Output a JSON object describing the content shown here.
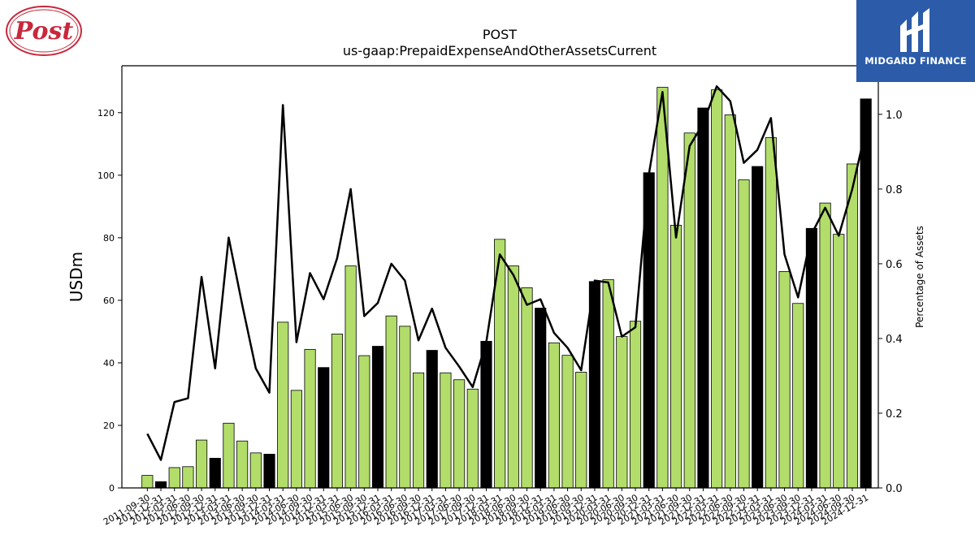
{
  "header": {
    "title": "POST",
    "subtitle": "us-gaap:PrepaidExpenseAndOtherAssetsCurrent"
  },
  "logos": {
    "left": {
      "icon": "post-logo-icon",
      "text": "Post"
    },
    "right": {
      "icon": "midgard-logo-icon",
      "text": "MIDGARD FINANCE"
    }
  },
  "colors": {
    "bar_green": "#b2dd6a",
    "bar_black": "#000000",
    "line": "#000000",
    "midgard_bg": "#2b5ba9",
    "post_red": "#c8283c"
  },
  "chart_data": {
    "type": "bar",
    "xlabel": "",
    "ylabel": "USDm",
    "ylabel_right": "Percentage of Assets",
    "ylim": [
      0,
      135
    ],
    "ylim_right": [
      0,
      1.13
    ],
    "yticks": [
      0,
      20,
      40,
      60,
      80,
      100,
      120
    ],
    "yticks_right": [
      0.0,
      0.2,
      0.4,
      0.6,
      0.8,
      1.0
    ],
    "grid": false,
    "categories": [
      "2011-09-30",
      "2011-12-31",
      "2012-03-31",
      "2012-06-30",
      "2012-09-30",
      "2012-12-31",
      "2013-03-31",
      "2013-06-30",
      "2013-09-30",
      "2013-12-31",
      "2014-03-31",
      "2014-06-30",
      "2014-09-30",
      "2014-12-31",
      "2015-03-31",
      "2015-06-30",
      "2015-09-30",
      "2015-12-31",
      "2016-03-31",
      "2016-06-30",
      "2016-09-30",
      "2016-12-31",
      "2017-03-31",
      "2017-06-30",
      "2017-09-30",
      "2017-12-31",
      "2018-03-31",
      "2018-06-30",
      "2018-09-30",
      "2018-12-31",
      "2019-03-31",
      "2019-06-30",
      "2019-09-30",
      "2019-12-31",
      "2020-03-31",
      "2020-06-30",
      "2020-09-30",
      "2020-12-31",
      "2021-03-31",
      "2021-06-30",
      "2021-09-30",
      "2021-12-31",
      "2022-03-31",
      "2022-06-30",
      "2022-09-30",
      "2022-12-31",
      "2023-03-31",
      "2023-06-30",
      "2023-09-30",
      "2023-12-31",
      "2024-03-31",
      "2024-06-30",
      "2024-09-30",
      "2024-12-31"
    ],
    "series": [
      {
        "type": "bar",
        "values": [
          4.0,
          2.0,
          6.5,
          6.8,
          15.3,
          9.5,
          20.7,
          15.0,
          11.2,
          10.8,
          53.0,
          31.2,
          44.3,
          38.5,
          49.2,
          71.0,
          42.3,
          45.3,
          55.0,
          51.7,
          36.8,
          44.0,
          36.8,
          34.6,
          31.6,
          46.9,
          79.5,
          71.0,
          64.0,
          57.5,
          46.4,
          42.4,
          37.0,
          66.0,
          66.6,
          48.4,
          53.3,
          100.8,
          128.1,
          84.0,
          113.5,
          121.5,
          127.3,
          119.3,
          98.5,
          102.8,
          112.0,
          69.2,
          59.0,
          83.0,
          91.1,
          81.1,
          103.6,
          124.4
        ],
        "highlight": [
          false,
          true,
          false,
          false,
          false,
          true,
          false,
          false,
          false,
          true,
          false,
          false,
          false,
          true,
          false,
          false,
          false,
          true,
          false,
          false,
          false,
          true,
          false,
          false,
          false,
          true,
          false,
          false,
          false,
          true,
          false,
          false,
          false,
          true,
          false,
          false,
          false,
          true,
          false,
          false,
          false,
          true,
          false,
          false,
          false,
          true,
          false,
          false,
          false,
          true,
          false,
          false,
          false,
          true
        ]
      },
      {
        "type": "line",
        "axis": "right",
        "values": [
          0.145,
          0.075,
          0.23,
          0.24,
          0.565,
          0.32,
          0.67,
          0.49,
          0.32,
          0.255,
          1.025,
          0.39,
          0.575,
          0.505,
          0.615,
          0.8,
          0.46,
          0.495,
          0.6,
          0.555,
          0.395,
          0.48,
          0.375,
          0.325,
          0.27,
          0.39,
          0.625,
          0.57,
          0.49,
          0.505,
          0.415,
          0.375,
          0.315,
          0.555,
          0.55,
          0.405,
          0.43,
          0.84,
          1.06,
          0.67,
          0.915,
          0.975,
          1.075,
          1.035,
          0.87,
          0.905,
          0.99,
          0.625,
          0.51,
          0.68,
          0.75,
          0.675,
          0.8,
          0.96
        ]
      }
    ]
  }
}
